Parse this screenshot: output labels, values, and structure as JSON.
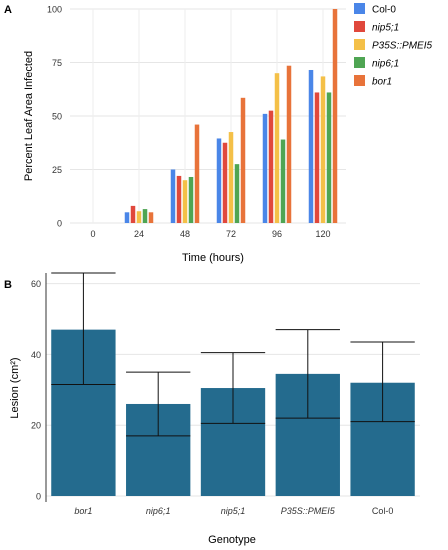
{
  "colors": {
    "Col-0": "#4a86e8",
    "nip5;1": "#e0483c",
    "P35S::PMEI5": "#f4c048",
    "nip6;1": "#4fa553",
    "bor1": "#e8733a",
    "panelB_bar": "#246b8e"
  },
  "chart_data": [
    {
      "panel": "A",
      "type": "bar",
      "ylabel": "Percent Leaf Area Infected",
      "xlabel": "Time (hours)",
      "categories": [
        "0",
        "24",
        "48",
        "72",
        "96",
        "120"
      ],
      "ylim": [
        0,
        100
      ],
      "yticks": [
        "0",
        "25",
        "50",
        "75",
        "100"
      ],
      "grid": true,
      "legend_position": "right",
      "series": [
        {
          "name": "Col-0",
          "values": [
            0,
            5,
            25,
            39.5,
            51,
            71.5
          ]
        },
        {
          "name": "nip5;1",
          "values": [
            0,
            8,
            22,
            37.5,
            52.5,
            61
          ]
        },
        {
          "name": "P35S::PMEI5",
          "values": [
            0,
            5.5,
            20,
            42.5,
            70,
            68.5
          ]
        },
        {
          "name": "nip6;1",
          "values": [
            0,
            6.5,
            21.5,
            27.5,
            39,
            61
          ]
        },
        {
          "name": "bor1",
          "values": [
            0,
            5,
            46,
            58.5,
            73.5,
            100
          ]
        }
      ]
    },
    {
      "panel": "B",
      "type": "bar",
      "ylabel": "Lesion (cm²)",
      "xlabel": "Genotype",
      "categories": [
        "bor1",
        "nip6;1",
        "nip5;1",
        "P35S::PMEI5",
        "Col-0"
      ],
      "values": [
        47,
        26,
        30.5,
        34.5,
        32
      ],
      "error_low": [
        31.5,
        17,
        20.5,
        22,
        21
      ],
      "error_high": [
        63,
        35,
        40.5,
        47,
        43.5
      ],
      "ylim": [
        0,
        63
      ],
      "yticks": [
        "0",
        "20",
        "40",
        "60"
      ]
    }
  ],
  "panels": {
    "A": "A",
    "B": "B"
  }
}
